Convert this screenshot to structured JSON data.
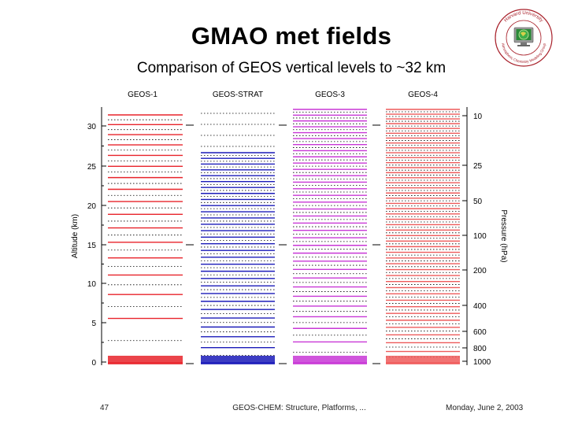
{
  "slide": {
    "title": "GMAO met fields",
    "subtitle": "Comparison of GEOS vertical levels to ~32 km",
    "logo": {
      "text_top": "Harvard University",
      "text_bottom": "Atmospheric Chemistry Modeling Group",
      "icon": "globe-monitor-logo"
    }
  },
  "diagram": {
    "left_axis": {
      "label": "Altitude (km)",
      "ticks": [
        "0",
        "5",
        "10",
        "15",
        "20",
        "25",
        "30"
      ]
    },
    "right_axis": {
      "label": "Pressure (hPa)",
      "ticks": [
        "10",
        "25",
        "50",
        "100",
        "200",
        "400",
        "600",
        "800",
        "1000"
      ]
    },
    "columns": [
      {
        "label": "GEOS-1",
        "color": "#e8232a"
      },
      {
        "label": "GEOS-STRAT",
        "color": "#1a1ab8"
      },
      {
        "label": "GEOS-3",
        "color": "#c837d6"
      },
      {
        "label": "GEOS-4",
        "color": "#ee5a5a"
      }
    ]
  },
  "footer": {
    "page": "47",
    "center": "GEOS-CHEM: Structure, Platforms, ...",
    "date": "Monday, June 2, 2003"
  }
}
